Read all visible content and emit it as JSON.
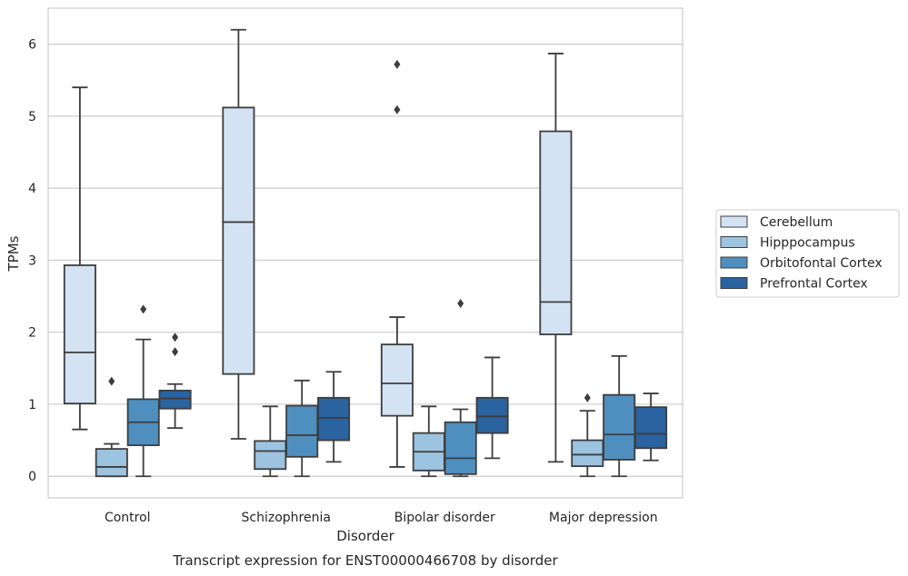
{
  "chart_data": {
    "type": "box",
    "title": "",
    "caption": "Transcript expression for ENST00000466708 by disorder",
    "xlabel": "Disorder",
    "ylabel": "TPMs",
    "ylim": [
      -0.3,
      6.5
    ],
    "yticks": [
      0,
      1,
      2,
      3,
      4,
      5,
      6
    ],
    "grid": "horizontal",
    "legend_position": "right",
    "categories": [
      "Control",
      "Schizophrenia",
      "Bipolar disorder",
      "Major depression"
    ],
    "series": [
      {
        "name": "Cerebellum",
        "color": "#d4e3f4",
        "boxes": [
          {
            "whislo": 0.65,
            "q1": 1.01,
            "med": 1.72,
            "q3": 2.93,
            "whishi": 5.4,
            "fliers": []
          },
          {
            "whislo": 0.52,
            "q1": 1.42,
            "med": 3.53,
            "q3": 5.12,
            "whishi": 6.2,
            "fliers": []
          },
          {
            "whislo": 0.13,
            "q1": 0.84,
            "med": 1.29,
            "q3": 1.83,
            "whishi": 2.21,
            "fliers": [
              5.09,
              5.72
            ]
          },
          {
            "whislo": 0.2,
            "q1": 1.97,
            "med": 2.42,
            "q3": 4.79,
            "whishi": 5.87,
            "fliers": []
          }
        ]
      },
      {
        "name": "Hipppocampus",
        "color": "#9cc3e0",
        "boxes": [
          {
            "whislo": 0.0,
            "q1": 0.0,
            "med": 0.13,
            "q3": 0.38,
            "whishi": 0.45,
            "fliers": [
              1.32
            ]
          },
          {
            "whislo": 0.0,
            "q1": 0.1,
            "med": 0.35,
            "q3": 0.49,
            "whishi": 0.97,
            "fliers": []
          },
          {
            "whislo": 0.0,
            "q1": 0.08,
            "med": 0.34,
            "q3": 0.6,
            "whishi": 0.97,
            "fliers": []
          },
          {
            "whislo": 0.0,
            "q1": 0.14,
            "med": 0.3,
            "q3": 0.5,
            "whishi": 0.91,
            "fliers": [
              1.09
            ]
          }
        ]
      },
      {
        "name": "Orbitofontal Cortex",
        "color": "#4f8fc0",
        "boxes": [
          {
            "whislo": 0.0,
            "q1": 0.43,
            "med": 0.75,
            "q3": 1.07,
            "whishi": 1.9,
            "fliers": [
              2.32
            ]
          },
          {
            "whislo": 0.0,
            "q1": 0.27,
            "med": 0.57,
            "q3": 0.98,
            "whishi": 1.33,
            "fliers": []
          },
          {
            "whislo": 0.0,
            "q1": 0.03,
            "med": 0.25,
            "q3": 0.75,
            "whishi": 0.93,
            "fliers": [
              2.4
            ]
          },
          {
            "whislo": 0.0,
            "q1": 0.23,
            "med": 0.58,
            "q3": 1.13,
            "whishi": 1.67,
            "fliers": []
          }
        ]
      },
      {
        "name": "Prefrontal Cortex",
        "color": "#2a63a0",
        "boxes": [
          {
            "whislo": 0.67,
            "q1": 0.94,
            "med": 1.08,
            "q3": 1.19,
            "whishi": 1.28,
            "fliers": [
              1.73,
              1.93
            ]
          },
          {
            "whislo": 0.2,
            "q1": 0.5,
            "med": 0.81,
            "q3": 1.09,
            "whishi": 1.45,
            "fliers": []
          },
          {
            "whislo": 0.25,
            "q1": 0.6,
            "med": 0.83,
            "q3": 1.09,
            "whishi": 1.65,
            "fliers": []
          },
          {
            "whislo": 0.22,
            "q1": 0.39,
            "med": 0.59,
            "q3": 0.96,
            "whishi": 1.15,
            "fliers": []
          }
        ]
      }
    ]
  }
}
